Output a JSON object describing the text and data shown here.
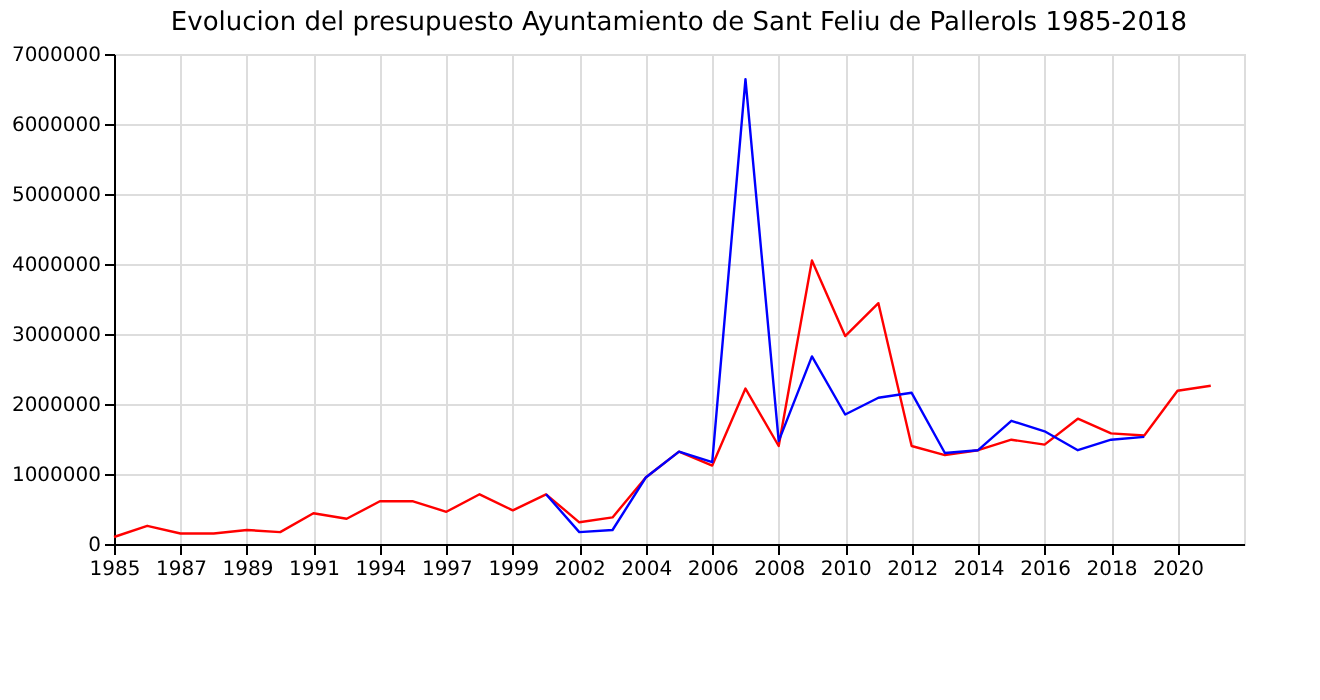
{
  "chart_data": {
    "type": "line",
    "title": "Evolucion del presupuesto Ayuntamiento de Sant Feliu de Pallerols 1985-2018",
    "categories": [
      "1985",
      null,
      "1987",
      null,
      "1989",
      null,
      "1991",
      null,
      "1994",
      null,
      "1997",
      null,
      "1999",
      null,
      "2002",
      null,
      "2004",
      null,
      "2006",
      null,
      "2008",
      null,
      "2010",
      null,
      "2012",
      null,
      "2014",
      null,
      "2016",
      null,
      "2018",
      null,
      "2020",
      null,
      null
    ],
    "series": [
      {
        "color": "#ff0000",
        "values": [
          100000,
          260000,
          150000,
          150000,
          200000,
          170000,
          440000,
          360000,
          610000,
          610000,
          460000,
          710000,
          480000,
          710000,
          310000,
          380000,
          950000,
          1320000,
          1120000,
          2220000,
          1400000,
          4050000,
          2970000,
          3440000,
          1400000,
          1270000,
          1340000,
          1490000,
          1420000,
          1790000,
          1580000,
          1550000,
          2190000,
          2260000,
          null
        ]
      },
      {
        "color": "#0000ff",
        "values": [
          null,
          null,
          null,
          null,
          null,
          null,
          null,
          null,
          null,
          null,
          null,
          null,
          null,
          710000,
          170000,
          200000,
          950000,
          1320000,
          1170000,
          6640000,
          1470000,
          2680000,
          1850000,
          2090000,
          2160000,
          1300000,
          1340000,
          1760000,
          1610000,
          1340000,
          1490000,
          1530000,
          null,
          null,
          null
        ]
      }
    ],
    "ylim": [
      0,
      7000000
    ],
    "yticks": [
      0,
      1000000,
      2000000,
      3000000,
      4000000,
      5000000,
      6000000,
      7000000
    ],
    "grid": true,
    "legend": false,
    "line_style": "solid",
    "marker": "none"
  }
}
